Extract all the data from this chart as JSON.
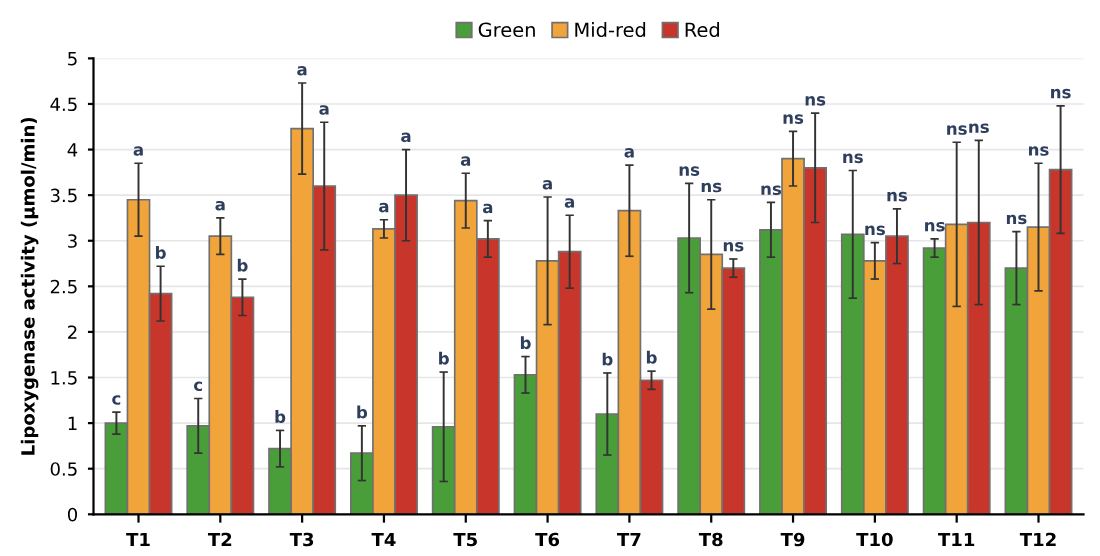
{
  "chart_data": {
    "type": "bar",
    "ylabel": "Lipoxygenase activity (µmol/min)",
    "categories": [
      "T1",
      "T2",
      "T3",
      "T4",
      "T5",
      "T6",
      "T7",
      "T8",
      "T9",
      "T10",
      "T11",
      "T12"
    ],
    "ylim": [
      0,
      5
    ],
    "yticks": [
      0,
      0.5,
      1,
      1.5,
      2,
      2.5,
      3,
      3.5,
      4,
      4.5,
      5
    ],
    "grid": "y",
    "legend": "top",
    "series": [
      {
        "name": "Green",
        "color": "#4a9e3a",
        "values": [
          1.0,
          0.97,
          0.72,
          0.67,
          0.96,
          1.53,
          1.1,
          3.03,
          3.12,
          3.07,
          2.92,
          2.7
        ],
        "errors": [
          0.12,
          0.3,
          0.2,
          0.3,
          0.6,
          0.2,
          0.45,
          0.6,
          0.3,
          0.7,
          0.1,
          0.4
        ]
      },
      {
        "name": "Mid-red",
        "color": "#f0a43a",
        "values": [
          3.45,
          3.05,
          4.23,
          3.13,
          3.44,
          2.78,
          3.33,
          2.85,
          3.9,
          2.78,
          3.18,
          3.15
        ],
        "errors": [
          0.4,
          0.2,
          0.5,
          0.1,
          0.3,
          0.7,
          0.5,
          0.6,
          0.3,
          0.2,
          0.9,
          0.7
        ]
      },
      {
        "name": "Red",
        "color": "#c8352b",
        "values": [
          2.42,
          2.38,
          3.6,
          3.5,
          3.02,
          2.88,
          1.47,
          2.7,
          3.8,
          3.05,
          3.2,
          3.78
        ],
        "errors": [
          0.3,
          0.2,
          0.7,
          0.5,
          0.2,
          0.4,
          0.1,
          0.1,
          0.6,
          0.3,
          0.9,
          0.7
        ]
      }
    ],
    "annotations": [
      "c",
      "a",
      "b",
      "c",
      "a",
      "b",
      "b",
      "a",
      "a",
      "b",
      "a",
      "a",
      "b",
      "a",
      "a",
      "b",
      "a",
      "a",
      "b",
      "a",
      "b",
      "ns",
      "ns",
      "ns",
      "ns",
      "ns",
      "ns",
      "ns",
      "ns",
      "ns",
      "ns",
      "ns",
      "ns",
      "ns",
      "ns",
      "ns"
    ]
  }
}
